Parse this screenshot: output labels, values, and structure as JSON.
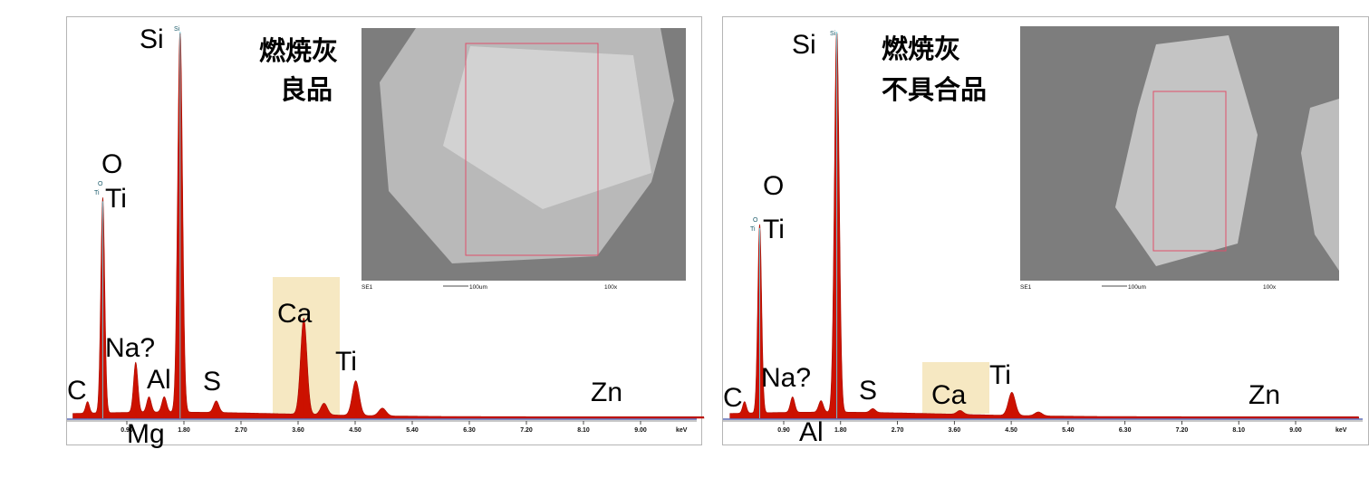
{
  "colors": {
    "spectrum_fill": "#cc1100",
    "spectrum_edge": "#a80c00",
    "marker_line": "#6fc6d6",
    "baseline": "#3b4ea8",
    "highlight": "#f6e8c2",
    "sem_bg": "#7d7d7d",
    "roi_box": "#e0506a"
  },
  "chart_data": [
    {
      "type": "area",
      "title": "燃焼灰\n良品",
      "title_lines": [
        "燃焼灰",
        "良品"
      ],
      "xlabel": "",
      "x_unit": "keV",
      "xlim": [
        0,
        10.0
      ],
      "ylim": [
        0,
        1.0
      ],
      "x_ticks": [
        "0.90",
        "1.80",
        "2.70",
        "3.60",
        "4.50",
        "5.40",
        "6.30",
        "7.20",
        "8.10",
        "9.00"
      ],
      "x_tick_values": [
        0.9,
        1.8,
        2.7,
        3.6,
        4.5,
        5.4,
        6.3,
        7.2,
        8.1,
        9.0
      ],
      "peaks": [
        {
          "element": "C",
          "energy": 0.28,
          "height": 0.03
        },
        {
          "element": "O",
          "energy": 0.52,
          "height": 0.56
        },
        {
          "element": "Na?",
          "energy": 1.04,
          "height": 0.13
        },
        {
          "element": "Mg",
          "energy": 1.25,
          "height": 0.04
        },
        {
          "element": "Al",
          "energy": 1.49,
          "height": 0.04
        },
        {
          "element": "Si",
          "energy": 1.74,
          "height": 1.0
        },
        {
          "element": "S",
          "energy": 2.31,
          "height": 0.03
        },
        {
          "element": "Ca",
          "energy": 3.69,
          "height": 0.25
        },
        {
          "element": "Ca Kβ",
          "energy": 4.01,
          "height": 0.03
        },
        {
          "element": "Ti",
          "energy": 4.51,
          "height": 0.09
        },
        {
          "element": "Ti Kβ",
          "energy": 4.93,
          "height": 0.02
        }
      ],
      "labels": [
        {
          "text": "Si",
          "energy": 1.74
        },
        {
          "text": "O",
          "energy": 0.52
        },
        {
          "text": "Ti",
          "energy": 0.52
        },
        {
          "text": "Na?",
          "energy": 1.04
        },
        {
          "text": "Al",
          "energy": 1.49
        },
        {
          "text": "Mg",
          "energy": 1.25
        },
        {
          "text": "C",
          "energy": 0.28
        },
        {
          "text": "S",
          "energy": 2.31
        },
        {
          "text": "Ca",
          "energy": 3.69
        },
        {
          "text": "Ti",
          "energy": 4.51
        },
        {
          "text": "Zn",
          "energy": 8.63
        }
      ],
      "marker_labels": [
        "Si",
        "O",
        "Ti"
      ],
      "highlight_element": "Ca",
      "sem_image": {
        "caption_left": "SE1",
        "scale_bar": "100um",
        "magnification": "100x"
      }
    },
    {
      "type": "area",
      "title": "燃焼灰\n不具合品",
      "title_lines": [
        "燃焼灰",
        "不具合品"
      ],
      "xlabel": "",
      "x_unit": "keV",
      "xlim": [
        0,
        10.0
      ],
      "ylim": [
        0,
        1.0
      ],
      "x_ticks": [
        "0.90",
        "1.80",
        "2.70",
        "3.60",
        "4.50",
        "5.40",
        "6.30",
        "7.20",
        "8.10",
        "9.00"
      ],
      "x_tick_values": [
        0.9,
        1.8,
        2.7,
        3.6,
        4.5,
        5.4,
        6.3,
        7.2,
        8.1,
        9.0
      ],
      "peaks": [
        {
          "element": "C",
          "energy": 0.28,
          "height": 0.03
        },
        {
          "element": "O",
          "energy": 0.52,
          "height": 0.49
        },
        {
          "element": "Na?",
          "energy": 1.04,
          "height": 0.04
        },
        {
          "element": "Al",
          "energy": 1.49,
          "height": 0.03
        },
        {
          "element": "Si",
          "energy": 1.74,
          "height": 1.0
        },
        {
          "element": "S",
          "energy": 2.31,
          "height": 0.01
        },
        {
          "element": "Ca",
          "energy": 3.69,
          "height": 0.01
        },
        {
          "element": "Ti",
          "energy": 4.51,
          "height": 0.06
        },
        {
          "element": "Ti Kβ",
          "energy": 4.93,
          "height": 0.01
        }
      ],
      "labels": [
        {
          "text": "Si",
          "energy": 1.74
        },
        {
          "text": "O",
          "energy": 0.52
        },
        {
          "text": "Ti",
          "energy": 0.52
        },
        {
          "text": "Na?",
          "energy": 1.04
        },
        {
          "text": "Al",
          "energy": 1.49
        },
        {
          "text": "C",
          "energy": 0.28
        },
        {
          "text": "S",
          "energy": 2.31
        },
        {
          "text": "Ca",
          "energy": 3.69
        },
        {
          "text": "Ti",
          "energy": 4.51
        },
        {
          "text": "Zn",
          "energy": 8.63
        }
      ],
      "marker_labels": [
        "Si",
        "O",
        "Ti"
      ],
      "highlight_element": "Ca",
      "sem_image": {
        "caption_left": "SE1",
        "scale_bar": "100um",
        "magnification": "100x"
      }
    }
  ]
}
